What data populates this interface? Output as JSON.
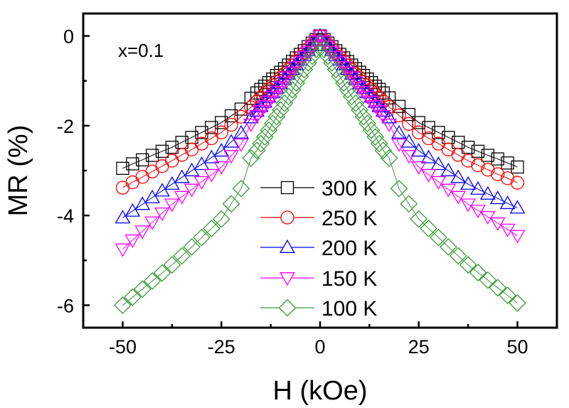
{
  "chart_data": {
    "type": "scatter",
    "title": "",
    "xlabel": "H (kOe)",
    "ylabel": "MR (%)",
    "xlim": [
      -60,
      60
    ],
    "ylim": [
      -6.5,
      0.5
    ],
    "xticks": [
      -50,
      -25,
      0,
      25,
      50
    ],
    "xtick_labels": [
      "-50",
      "-25",
      "0",
      "25",
      "50"
    ],
    "xminor": [
      -37.5,
      -12.5,
      12.5,
      37.5
    ],
    "yticks": [
      0,
      -2,
      -4,
      -6
    ],
    "ytick_labels": [
      "0",
      "-2",
      "-4",
      "-6"
    ],
    "yminor": [
      -1,
      -3,
      -5
    ],
    "grid": false,
    "annotation": "x=0.1",
    "legend_position": "lower-center",
    "x": [
      -50,
      -47.5,
      -45,
      -42.5,
      -40,
      -37.5,
      -35,
      -32.5,
      -30,
      -27.5,
      -25,
      -22.5,
      -20,
      -17.5,
      -16,
      -15,
      -14,
      -13,
      -12,
      -11,
      -10,
      -9,
      -8,
      -7,
      -6,
      -5,
      -4,
      -3,
      -2,
      -1,
      0,
      1,
      2,
      3,
      4,
      5,
      6,
      7,
      8,
      9,
      10,
      11,
      12,
      13,
      14,
      15,
      16,
      17.5,
      20,
      22.5,
      25,
      27.5,
      30,
      32.5,
      35,
      37.5,
      40,
      42.5,
      45,
      47.5,
      50
    ],
    "series": [
      {
        "name": "300 K",
        "color": "#000000",
        "marker": "square",
        "values": [
          -2.95,
          -2.85,
          -2.76,
          -2.66,
          -2.57,
          -2.48,
          -2.37,
          -2.26,
          -2.15,
          -2.04,
          -1.93,
          -1.78,
          -1.63,
          -1.39,
          -1.27,
          -1.19,
          -1.12,
          -1.04,
          -0.96,
          -0.88,
          -0.81,
          -0.73,
          -0.65,
          -0.57,
          -0.49,
          -0.41,
          -0.33,
          -0.24,
          -0.16,
          -0.08,
          0.0,
          -0.08,
          -0.16,
          -0.24,
          -0.33,
          -0.41,
          -0.49,
          -0.57,
          -0.65,
          -0.73,
          -0.81,
          -0.88,
          -0.96,
          -1.04,
          -1.12,
          -1.19,
          -1.27,
          -1.38,
          -1.57,
          -1.75,
          -1.93,
          -2.04,
          -2.15,
          -2.26,
          -2.37,
          -2.48,
          -2.57,
          -2.66,
          -2.74,
          -2.83,
          -2.92
        ]
      },
      {
        "name": "250 K",
        "color": "#ff0000",
        "marker": "circle",
        "values": [
          -3.38,
          -3.26,
          -3.14,
          -3.02,
          -2.9,
          -2.78,
          -2.65,
          -2.53,
          -2.4,
          -2.28,
          -2.15,
          -1.98,
          -1.8,
          -1.59,
          -1.46,
          -1.37,
          -1.28,
          -1.19,
          -1.1,
          -1.02,
          -0.93,
          -0.84,
          -0.75,
          -0.66,
          -0.56,
          -0.47,
          -0.38,
          -0.28,
          -0.19,
          -0.09,
          0.0,
          -0.09,
          -0.19,
          -0.28,
          -0.38,
          -0.47,
          -0.56,
          -0.66,
          -0.75,
          -0.84,
          -0.93,
          -1.02,
          -1.1,
          -1.19,
          -1.28,
          -1.37,
          -1.46,
          -1.58,
          -1.77,
          -1.96,
          -2.15,
          -2.28,
          -2.4,
          -2.53,
          -2.65,
          -2.78,
          -2.88,
          -2.98,
          -3.08,
          -3.17,
          -3.27
        ]
      },
      {
        "name": "200 K",
        "color": "#0000ff",
        "marker": "triangle-up",
        "values": [
          -4.05,
          -3.9,
          -3.75,
          -3.6,
          -3.45,
          -3.3,
          -3.15,
          -3.0,
          -2.86,
          -2.71,
          -2.56,
          -2.36,
          -2.16,
          -1.82,
          -1.67,
          -1.57,
          -1.47,
          -1.36,
          -1.26,
          -1.16,
          -1.06,
          -0.96,
          -0.85,
          -0.74,
          -0.64,
          -0.53,
          -0.43,
          -0.32,
          -0.21,
          -0.11,
          0.0,
          -0.11,
          -0.21,
          -0.32,
          -0.43,
          -0.53,
          -0.64,
          -0.74,
          -0.85,
          -0.96,
          -1.06,
          -1.16,
          -1.26,
          -1.36,
          -1.47,
          -1.57,
          -1.67,
          -1.82,
          -2.16,
          -2.36,
          -2.56,
          -2.71,
          -2.86,
          -3.0,
          -3.15,
          -3.3,
          -3.41,
          -3.52,
          -3.62,
          -3.73,
          -3.83
        ]
      },
      {
        "name": "150 K",
        "color": "#ff00ff",
        "marker": "triangle-down",
        "values": [
          -4.75,
          -4.55,
          -4.35,
          -4.15,
          -3.95,
          -3.75,
          -3.58,
          -3.42,
          -3.25,
          -3.09,
          -2.92,
          -2.67,
          -2.41,
          -1.97,
          -1.78,
          -1.67,
          -1.56,
          -1.46,
          -1.35,
          -1.24,
          -1.14,
          -1.03,
          -0.92,
          -0.81,
          -0.69,
          -0.58,
          -0.46,
          -0.35,
          -0.23,
          -0.12,
          0.0,
          -0.12,
          -0.23,
          -0.35,
          -0.46,
          -0.58,
          -0.69,
          -0.81,
          -0.92,
          -1.03,
          -1.14,
          -1.24,
          -1.35,
          -1.46,
          -1.56,
          -1.67,
          -1.78,
          -1.97,
          -2.41,
          -2.67,
          -2.92,
          -3.09,
          -3.25,
          -3.42,
          -3.58,
          -3.75,
          -3.89,
          -4.03,
          -4.17,
          -4.31,
          -4.45
        ]
      },
      {
        "name": "100 K",
        "color": "#3a9a3a",
        "marker": "diamond",
        "values": [
          -6.0,
          -5.82,
          -5.64,
          -5.46,
          -5.28,
          -5.1,
          -4.9,
          -4.7,
          -4.49,
          -4.29,
          -4.08,
          -3.74,
          -3.4,
          -2.72,
          -2.55,
          -2.4,
          -2.25,
          -2.1,
          -1.95,
          -1.8,
          -1.65,
          -1.5,
          -1.35,
          -1.2,
          -1.05,
          -0.9,
          -0.75,
          -0.6,
          -0.45,
          -0.3,
          -0.15,
          -0.3,
          -0.45,
          -0.6,
          -0.75,
          -0.9,
          -1.05,
          -1.2,
          -1.35,
          -1.5,
          -1.65,
          -1.8,
          -1.95,
          -2.1,
          -2.25,
          -2.4,
          -2.55,
          -2.72,
          -3.4,
          -3.74,
          -4.08,
          -4.29,
          -4.49,
          -4.7,
          -4.9,
          -5.1,
          -5.27,
          -5.44,
          -5.61,
          -5.78,
          -5.95
        ]
      }
    ]
  }
}
